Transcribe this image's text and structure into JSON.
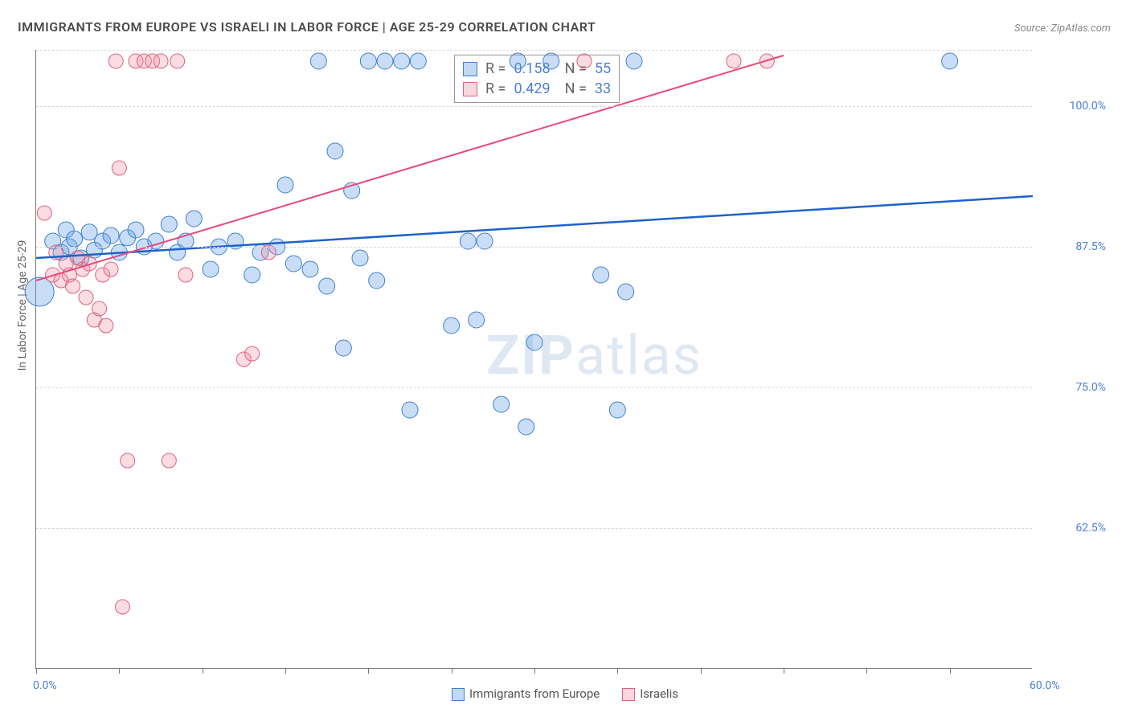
{
  "title": "IMMIGRANTS FROM EUROPE VS ISRAELI IN LABOR FORCE | AGE 25-29 CORRELATION CHART",
  "source": "Source: ZipAtlas.com",
  "watermark_zip": "ZIP",
  "watermark_atlas": "atlas",
  "chart": {
    "type": "scatter",
    "background_color": "#ffffff",
    "grid_color": "#d8d8d8",
    "axis_color": "#777777",
    "y_axis_title": "In Labor Force | Age 25-29",
    "y_axis_title_fontsize": 14,
    "y_axis_title_color": "#666666",
    "xlim": [
      0,
      60
    ],
    "ylim": [
      50,
      105
    ],
    "x_ticks": [
      0,
      5,
      10,
      15,
      20,
      25,
      30,
      35,
      40,
      45,
      50,
      55
    ],
    "x_tick_labels": [
      {
        "value": 0,
        "label": "0.0%"
      },
      {
        "value": 60,
        "label": "60.0%"
      }
    ],
    "y_gridlines": [
      62.5,
      75.0,
      87.5,
      100.0,
      105.0
    ],
    "y_tick_labels": [
      {
        "value": 62.5,
        "label": "62.5%"
      },
      {
        "value": 75.0,
        "label": "75.0%"
      },
      {
        "value": 87.5,
        "label": "87.5%"
      },
      {
        "value": 100.0,
        "label": "100.0%"
      }
    ],
    "tick_label_color": "#4a7fd6",
    "tick_label_fontsize": 14,
    "series": [
      {
        "name": "Immigrants from Europe",
        "color_fill": "rgba(100,160,230,0.35)",
        "color_stroke": "#3d7fcf",
        "trend_color": "#1f63c7",
        "trend_width": 2.5,
        "r": 0.158,
        "n": 55,
        "trend_line": {
          "x1": 0,
          "y1": 86.5,
          "x2": 60,
          "y2": 92.0
        },
        "marker_radius": 10,
        "points": [
          {
            "x": 0.2,
            "y": 83.5,
            "r": 18
          },
          {
            "x": 1.0,
            "y": 88.0
          },
          {
            "x": 1.5,
            "y": 87.0
          },
          {
            "x": 1.8,
            "y": 89.0
          },
          {
            "x": 2.0,
            "y": 87.5
          },
          {
            "x": 2.3,
            "y": 88.2
          },
          {
            "x": 2.7,
            "y": 86.5
          },
          {
            "x": 3.2,
            "y": 88.8
          },
          {
            "x": 3.5,
            "y": 87.2
          },
          {
            "x": 4.0,
            "y": 88.0
          },
          {
            "x": 4.5,
            "y": 88.5
          },
          {
            "x": 5.0,
            "y": 87.0
          },
          {
            "x": 5.5,
            "y": 88.3
          },
          {
            "x": 6.0,
            "y": 89.0
          },
          {
            "x": 6.5,
            "y": 87.5
          },
          {
            "x": 7.2,
            "y": 88.0
          },
          {
            "x": 8.0,
            "y": 89.5
          },
          {
            "x": 8.5,
            "y": 87.0
          },
          {
            "x": 9.0,
            "y": 88.0
          },
          {
            "x": 9.5,
            "y": 90.0
          },
          {
            "x": 10.5,
            "y": 85.5
          },
          {
            "x": 11.0,
            "y": 87.5
          },
          {
            "x": 12.0,
            "y": 88.0
          },
          {
            "x": 13.0,
            "y": 85.0
          },
          {
            "x": 13.5,
            "y": 87.0
          },
          {
            "x": 14.5,
            "y": 87.5
          },
          {
            "x": 15.0,
            "y": 93.0
          },
          {
            "x": 15.5,
            "y": 86.0
          },
          {
            "x": 16.5,
            "y": 85.5
          },
          {
            "x": 17.0,
            "y": 104.0
          },
          {
            "x": 17.5,
            "y": 84.0
          },
          {
            "x": 18.0,
            "y": 96.0
          },
          {
            "x": 18.5,
            "y": 78.5
          },
          {
            "x": 19.0,
            "y": 92.5
          },
          {
            "x": 19.5,
            "y": 86.5
          },
          {
            "x": 20.0,
            "y": 104.0
          },
          {
            "x": 20.5,
            "y": 84.5
          },
          {
            "x": 21.0,
            "y": 104.0
          },
          {
            "x": 22.0,
            "y": 104.0
          },
          {
            "x": 22.5,
            "y": 73.0
          },
          {
            "x": 23.0,
            "y": 104.0
          },
          {
            "x": 25.0,
            "y": 80.5
          },
          {
            "x": 26.0,
            "y": 88.0
          },
          {
            "x": 26.5,
            "y": 81.0
          },
          {
            "x": 27.0,
            "y": 88.0
          },
          {
            "x": 28.0,
            "y": 73.5
          },
          {
            "x": 29.0,
            "y": 104.0
          },
          {
            "x": 29.5,
            "y": 71.5
          },
          {
            "x": 30.0,
            "y": 79.0
          },
          {
            "x": 31.0,
            "y": 104.0
          },
          {
            "x": 35.0,
            "y": 73.0
          },
          {
            "x": 35.5,
            "y": 83.5
          },
          {
            "x": 36.0,
            "y": 104.0
          },
          {
            "x": 55.0,
            "y": 104.0
          },
          {
            "x": 34.0,
            "y": 85.0
          }
        ]
      },
      {
        "name": "Israelis",
        "color_fill": "rgba(240,140,160,0.3)",
        "color_stroke": "#e06080",
        "trend_color": "#e84a7a",
        "trend_width": 2,
        "r": 0.429,
        "n": 33,
        "trend_line": {
          "x1": 0,
          "y1": 84.5,
          "x2": 45,
          "y2": 104.5
        },
        "marker_radius": 9,
        "points": [
          {
            "x": 0.5,
            "y": 90.5
          },
          {
            "x": 1.0,
            "y": 85.0
          },
          {
            "x": 1.2,
            "y": 87.0
          },
          {
            "x": 1.5,
            "y": 84.5
          },
          {
            "x": 1.8,
            "y": 86.0
          },
          {
            "x": 2.0,
            "y": 85.0
          },
          {
            "x": 2.2,
            "y": 84.0
          },
          {
            "x": 2.5,
            "y": 86.5
          },
          {
            "x": 2.8,
            "y": 85.5
          },
          {
            "x": 3.0,
            "y": 83.0
          },
          {
            "x": 3.2,
            "y": 86.0
          },
          {
            "x": 3.5,
            "y": 81.0
          },
          {
            "x": 3.8,
            "y": 82.0
          },
          {
            "x": 4.0,
            "y": 85.0
          },
          {
            "x": 4.2,
            "y": 80.5
          },
          {
            "x": 4.5,
            "y": 85.5
          },
          {
            "x": 4.8,
            "y": 104.0
          },
          {
            "x": 5.0,
            "y": 94.5
          },
          {
            "x": 5.5,
            "y": 68.5
          },
          {
            "x": 6.0,
            "y": 104.0
          },
          {
            "x": 6.5,
            "y": 104.0
          },
          {
            "x": 7.0,
            "y": 104.0
          },
          {
            "x": 7.5,
            "y": 104.0
          },
          {
            "x": 8.0,
            "y": 68.5
          },
          {
            "x": 8.5,
            "y": 104.0
          },
          {
            "x": 9.0,
            "y": 85.0
          },
          {
            "x": 5.2,
            "y": 55.5
          },
          {
            "x": 12.5,
            "y": 77.5
          },
          {
            "x": 13.0,
            "y": 78.0
          },
          {
            "x": 14.0,
            "y": 87.0
          },
          {
            "x": 33.0,
            "y": 104.0
          },
          {
            "x": 42.0,
            "y": 104.0
          },
          {
            "x": 44.0,
            "y": 104.0
          }
        ]
      }
    ],
    "r_legend": {
      "border_color": "#999999",
      "label_r": "R  =",
      "label_n": "N  =",
      "value_color": "#4a7fd6",
      "fontsize": 18
    },
    "bottom_legend": {
      "fontsize": 15,
      "text_color": "#555555",
      "items": [
        {
          "label": "Immigrants from Europe",
          "fill": "rgba(100,160,230,0.4)",
          "stroke": "#3d7fcf"
        },
        {
          "label": "Israelis",
          "fill": "rgba(240,140,160,0.35)",
          "stroke": "#e06080"
        }
      ]
    }
  }
}
